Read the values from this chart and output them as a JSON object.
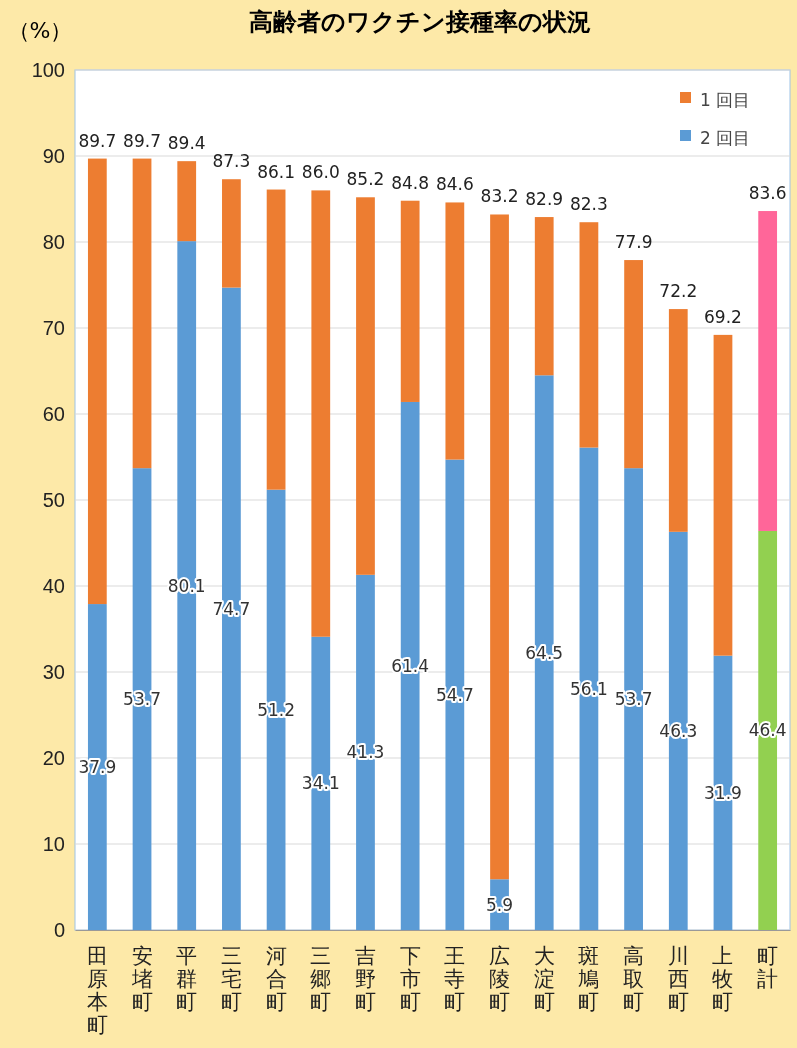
{
  "chart_data": {
    "type": "bar",
    "title": "高齢者のワクチン接種率の状況",
    "ylabel": "（%）",
    "categories": [
      "田原本町",
      "安堵町",
      "平群町",
      "三宅町",
      "河合町",
      "三郷町",
      "吉野町",
      "下市町",
      "王寺町",
      "広陵町",
      "大淀町",
      "斑鳩町",
      "高取町",
      "川西町",
      "上牧町",
      "町計"
    ],
    "stacked": true,
    "series": [
      {
        "name": "2 回目",
        "color": "#5b9bd5",
        "colors": [
          "#5b9bd5",
          "#5b9bd5",
          "#5b9bd5",
          "#5b9bd5",
          "#5b9bd5",
          "#5b9bd5",
          "#5b9bd5",
          "#5b9bd5",
          "#5b9bd5",
          "#5b9bd5",
          "#5b9bd5",
          "#5b9bd5",
          "#5b9bd5",
          "#5b9bd5",
          "#5b9bd5",
          "#92d050"
        ],
        "values": [
          37.9,
          53.7,
          80.1,
          74.7,
          51.2,
          34.1,
          41.3,
          61.4,
          54.7,
          5.9,
          64.5,
          56.1,
          53.7,
          46.3,
          31.9,
          46.4
        ],
        "value_labels": [
          "37.9",
          "53.7",
          "80.1",
          "74.7",
          "51.2",
          "34.1",
          "41.3",
          "61.4",
          "54.7",
          "5.9",
          "64.5",
          "56.1",
          "53.7",
          "46.3",
          "31.9",
          "46.4"
        ]
      },
      {
        "name": "1 回目",
        "color": "#ed7d31",
        "colors": [
          "#ed7d31",
          "#ed7d31",
          "#ed7d31",
          "#ed7d31",
          "#ed7d31",
          "#ed7d31",
          "#ed7d31",
          "#ed7d31",
          "#ed7d31",
          "#ed7d31",
          "#ed7d31",
          "#ed7d31",
          "#ed7d31",
          "#ed7d31",
          "#ed7d31",
          "#ff6699"
        ],
        "values": [
          51.8,
          36.0,
          9.3,
          12.6,
          34.9,
          51.9,
          43.9,
          23.4,
          29.9,
          77.3,
          18.4,
          26.2,
          24.2,
          25.9,
          37.3,
          37.2
        ]
      }
    ],
    "totals": [
      "89.7",
      "89.7",
      "89.4",
      "87.3",
      "86.1",
      "86.0",
      "85.2",
      "84.8",
      "84.6",
      "83.2",
      "82.9",
      "82.3",
      "77.9",
      "72.2",
      "69.2",
      "83.6"
    ],
    "ylim": [
      0,
      100
    ],
    "yticks": [
      0,
      10,
      20,
      30,
      40,
      50,
      60,
      70,
      80,
      90,
      100
    ],
    "grid": "y",
    "legend": "top right"
  }
}
